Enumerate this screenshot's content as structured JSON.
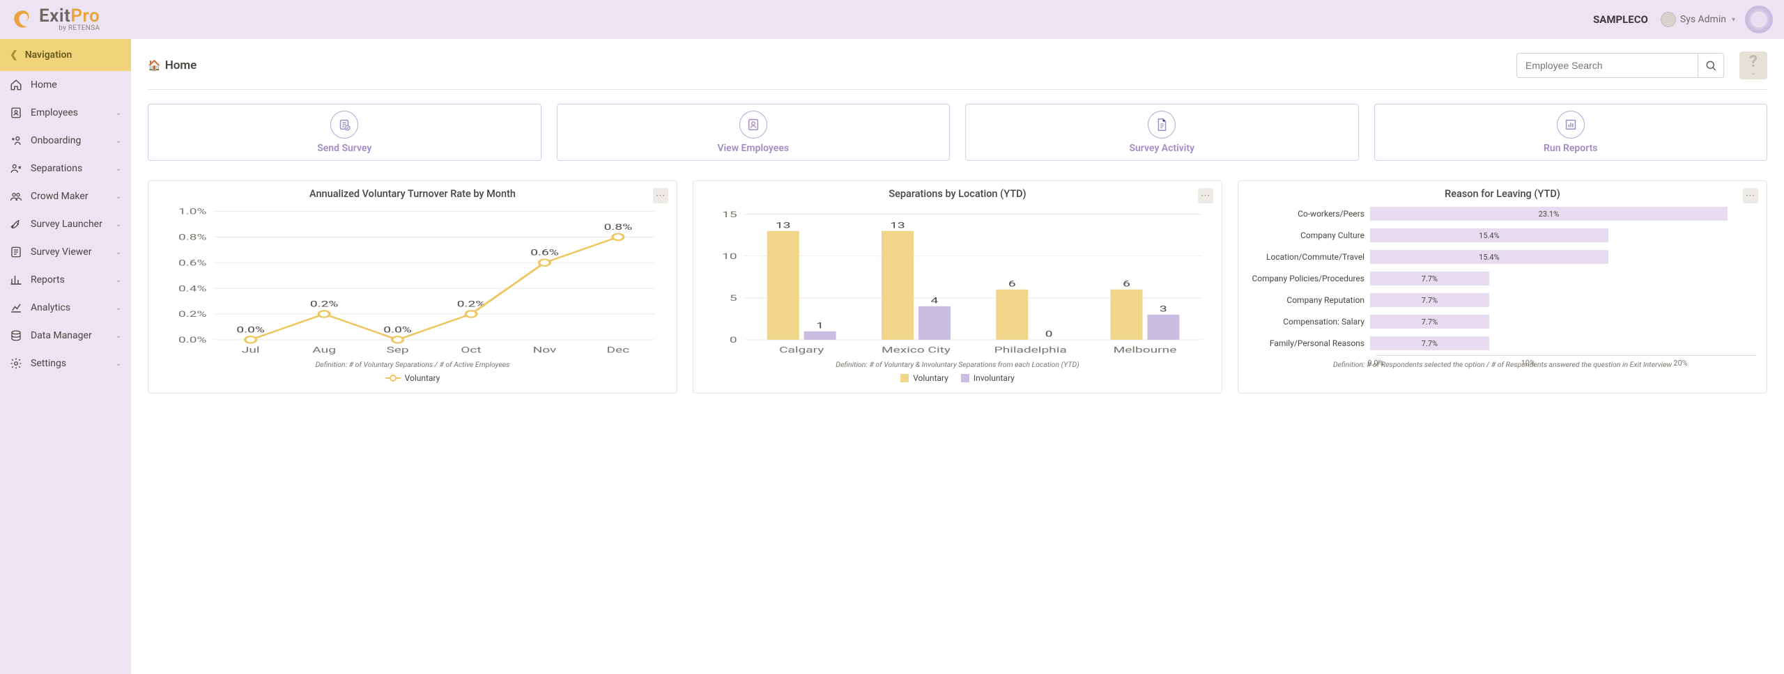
{
  "header": {
    "logo_exit": "Exit",
    "logo_pro": "Pro",
    "logo_sub": "by RETENSA",
    "company": "SAMPLECO",
    "user_name": "Sys Admin"
  },
  "sidebar": {
    "nav_title": "Navigation",
    "items": [
      {
        "icon": "home",
        "label": "Home",
        "expandable": false
      },
      {
        "icon": "employees",
        "label": "Employees",
        "expandable": true
      },
      {
        "icon": "onboarding",
        "label": "Onboarding",
        "expandable": true
      },
      {
        "icon": "separations",
        "label": "Separations",
        "expandable": true
      },
      {
        "icon": "crowd",
        "label": "Crowd Maker",
        "expandable": true
      },
      {
        "icon": "launcher",
        "label": "Survey Launcher",
        "expandable": true
      },
      {
        "icon": "viewer",
        "label": "Survey Viewer",
        "expandable": true
      },
      {
        "icon": "reports",
        "label": "Reports",
        "expandable": true
      },
      {
        "icon": "analytics",
        "label": "Analytics",
        "expandable": true
      },
      {
        "icon": "data",
        "label": "Data Manager",
        "expandable": true
      },
      {
        "icon": "settings",
        "label": "Settings",
        "expandable": true
      }
    ]
  },
  "page": {
    "title": "Home",
    "search_placeholder": "Employee Search"
  },
  "actions": [
    {
      "icon": "send-survey",
      "label": "Send Survey"
    },
    {
      "icon": "view-employees",
      "label": "View Employees"
    },
    {
      "icon": "survey-activity",
      "label": "Survey Activity"
    },
    {
      "icon": "run-reports",
      "label": "Run Reports"
    }
  ],
  "colors": {
    "accent_gold": "#efc55f",
    "accent_gold_dark": "#e8a33d",
    "bar_gold": "#f1d589",
    "bar_purple": "#cabde2",
    "hbar_fill": "#e7dbf1",
    "border_purple": "#ddc9e8",
    "sidebar_bg": "#ece4f2",
    "grid": "#eeeae5"
  },
  "chart1": {
    "type": "line",
    "title": "Annualized Voluntary Turnover Rate by Month",
    "categories": [
      "Jul",
      "Aug",
      "Sep",
      "Oct",
      "Nov",
      "Dec"
    ],
    "values": [
      0.0,
      0.2,
      0.0,
      0.2,
      0.6,
      0.8
    ],
    "value_labels": [
      "0.0%",
      "0.2%",
      "0.0%",
      "0.2%",
      "0.6%",
      "0.8%"
    ],
    "ylim": [
      0,
      1.0
    ],
    "ytick_step": 0.2,
    "yticks": [
      "0.0%",
      "0.2%",
      "0.4%",
      "0.6%",
      "0.8%",
      "1.0%"
    ],
    "line_color": "#efc55f",
    "marker_fill": "#ffffff",
    "definition": "Definition: # of Voluntary Separations / # of Active Employees",
    "legend": [
      "Voluntary"
    ]
  },
  "chart2": {
    "type": "grouped_bar",
    "title": "Separations by Location (YTD)",
    "categories": [
      "Calgary",
      "Mexico City",
      "Philadelphia",
      "Melbourne"
    ],
    "series": [
      {
        "name": "Voluntary",
        "color": "#f1d589",
        "values": [
          13,
          13,
          6,
          6
        ]
      },
      {
        "name": "Involuntary",
        "color": "#cabde2",
        "values": [
          1,
          4,
          0,
          3
        ]
      }
    ],
    "ylim": [
      0,
      15
    ],
    "yticks": [
      0,
      5,
      10,
      15
    ],
    "definition": "Definition: # of Voluntary & Involuntary Separations from each Location (YTD)"
  },
  "chart3": {
    "type": "horizontal_bar",
    "title": "Reason for Leaving (YTD)",
    "rows": [
      {
        "label": "Co-workers/Peers",
        "value": 23.1,
        "text": "23.1%"
      },
      {
        "label": "Company Culture",
        "value": 15.4,
        "text": "15.4%"
      },
      {
        "label": "Location/Commute/Travel",
        "value": 15.4,
        "text": "15.4%"
      },
      {
        "label": "Company Policies/Procedures",
        "value": 7.7,
        "text": "7.7%"
      },
      {
        "label": "Company Reputation",
        "value": 7.7,
        "text": "7.7%"
      },
      {
        "label": "Compensation: Salary",
        "value": 7.7,
        "text": "7.7%"
      },
      {
        "label": "Family/Personal Reasons",
        "value": 7.7,
        "text": "7.7%"
      }
    ],
    "xlim": [
      0,
      25
    ],
    "xticks": [
      {
        "v": 0,
        "t": "0.0%"
      },
      {
        "v": 10,
        "t": "10%"
      },
      {
        "v": 20,
        "t": "20%"
      }
    ],
    "bar_color": "#e7dbf1",
    "definition": "Definition: # of Respondents selected the option / # of Respondents answered the question in Exit Interview"
  }
}
